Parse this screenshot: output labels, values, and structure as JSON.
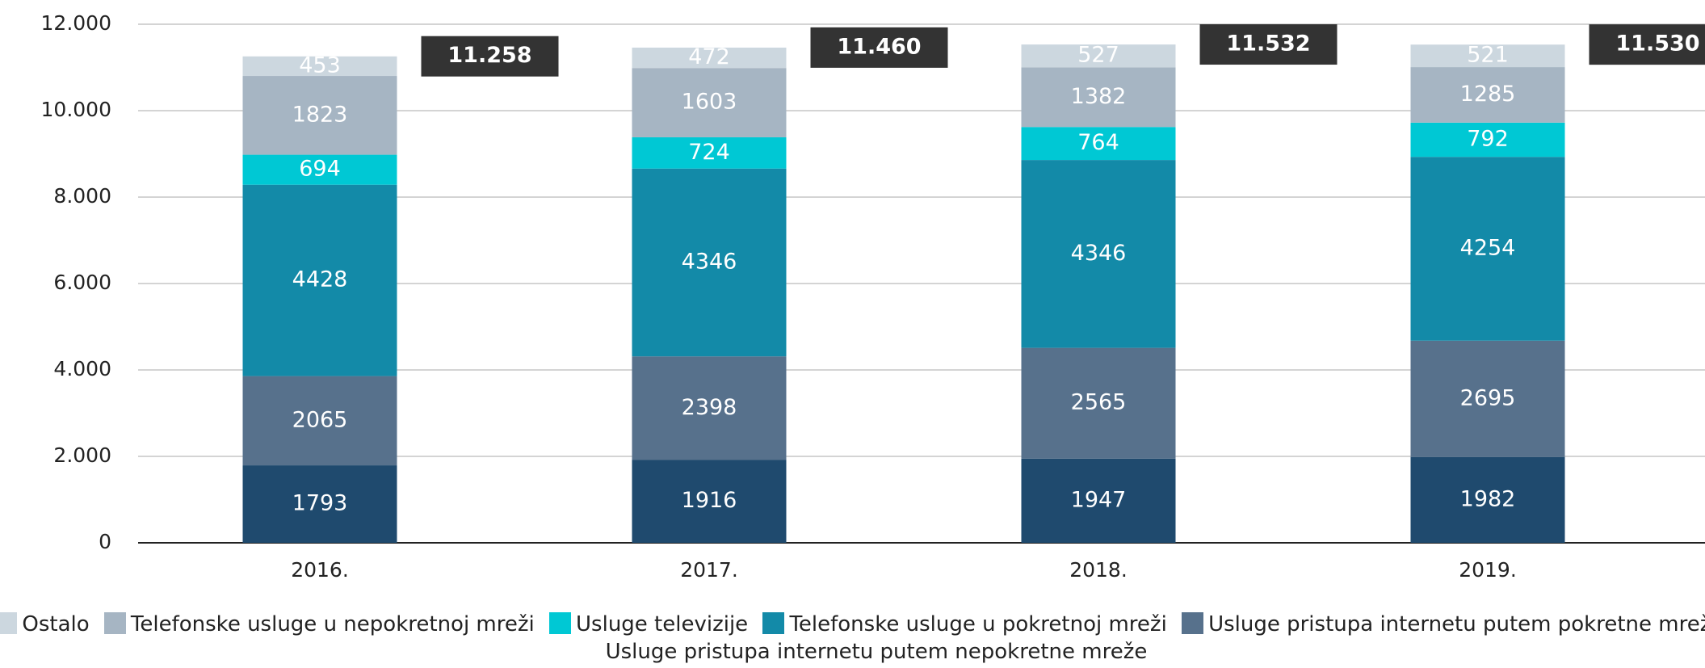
{
  "chart_data": {
    "type": "stacked-bar",
    "categories": [
      "2016.",
      "2017.",
      "2018.",
      "2019."
    ],
    "series": [
      {
        "name": "Usluge pristupa internetu putem nepokretne mreže",
        "color": "#1f4a6e",
        "values": [
          1793,
          1916,
          1947,
          1982
        ]
      },
      {
        "name": "Usluge pristupa internetu putem pokretne mreže",
        "color": "#57718c",
        "values": [
          2065,
          2398,
          2565,
          2695
        ]
      },
      {
        "name": "Telefonske usluge u pokretnoj mreži",
        "color": "#138aa8",
        "values": [
          4428,
          4346,
          4346,
          4254
        ]
      },
      {
        "name": "Usluge televizije",
        "color": "#00c8d4",
        "values": [
          694,
          724,
          764,
          792
        ]
      },
      {
        "name": "Telefonske usluge u nepokretnoj mreži",
        "color": "#a6b5c3",
        "values": [
          1823,
          1603,
          1382,
          1285
        ]
      },
      {
        "name": "Ostalo",
        "color": "#ccd7df",
        "values": [
          453,
          472,
          527,
          521
        ]
      }
    ],
    "totals": [
      {
        "value": 11258,
        "label": "11.258"
      },
      {
        "value": 11460,
        "label": "11.460"
      },
      {
        "value": 11532,
        "label": "11.532"
      },
      {
        "value": 11530,
        "label": "11.530"
      }
    ],
    "ylim": [
      0,
      12000
    ],
    "yticks": [
      0,
      {
        "value": 2000,
        "label": "2.000"
      },
      {
        "value": 4000,
        "label": "4.000"
      },
      {
        "value": 6000,
        "label": "6.000"
      },
      {
        "value": 8000,
        "label": "8.000"
      },
      {
        "value": 10000,
        "label": "10.000"
      },
      {
        "value": 12000,
        "label": "12.000"
      }
    ],
    "grid": true,
    "legend": "bottom"
  }
}
